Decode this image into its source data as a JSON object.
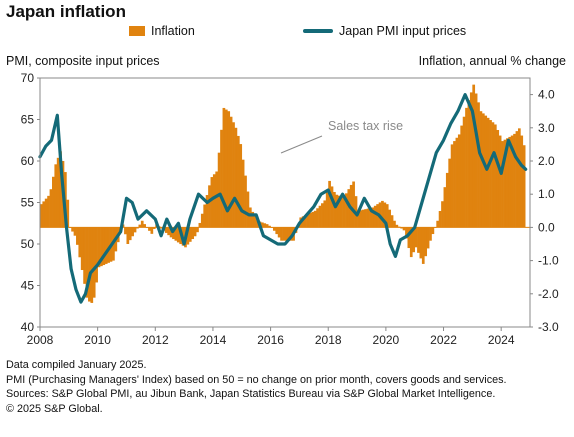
{
  "chart_data": {
    "type": "bar+line",
    "title": "Japan inflation",
    "left_axis_label": "PMI, composite input prices",
    "right_axis_label": "Inflation, annual % change",
    "left_ylim": [
      40,
      70
    ],
    "left_ticks": [
      40,
      45,
      50,
      55,
      60,
      65,
      70
    ],
    "right_ylim": [
      -3,
      4.5
    ],
    "right_ticks": [
      "-3.0",
      "-2.0",
      "-1.0",
      "0.0",
      "1.0",
      "2.0",
      "3.0",
      "4.0"
    ],
    "xlim": [
      2008,
      2025
    ],
    "x_ticks": [
      "2008",
      "2010",
      "2012",
      "2014",
      "2016",
      "2018",
      "2020",
      "2022",
      "2024"
    ],
    "annotation": "Sales tax rise",
    "grid": false,
    "series": [
      {
        "name": "Inflation",
        "kind": "bar",
        "axis": "right",
        "color": "#e0830f",
        "points": [
          [
            2008.0,
            0.7
          ],
          [
            2008.3,
            1.0
          ],
          [
            2008.5,
            1.9
          ],
          [
            2008.67,
            2.3
          ],
          [
            2008.83,
            1.7
          ],
          [
            2009.0,
            0.0
          ],
          [
            2009.2,
            -0.3
          ],
          [
            2009.4,
            -1.2
          ],
          [
            2009.6,
            -2.2
          ],
          [
            2009.8,
            -2.3
          ],
          [
            2010.0,
            -1.2
          ],
          [
            2010.5,
            -1.0
          ],
          [
            2010.83,
            0.1
          ],
          [
            2011.0,
            -0.5
          ],
          [
            2011.5,
            0.2
          ],
          [
            2011.83,
            -0.2
          ],
          [
            2012.0,
            0.1
          ],
          [
            2012.5,
            -0.3
          ],
          [
            2012.83,
            -0.5
          ],
          [
            2013.0,
            -0.6
          ],
          [
            2013.4,
            -0.2
          ],
          [
            2013.7,
            0.8
          ],
          [
            2013.9,
            1.5
          ],
          [
            2014.1,
            1.7
          ],
          [
            2014.33,
            3.6
          ],
          [
            2014.5,
            3.5
          ],
          [
            2014.75,
            3.0
          ],
          [
            2014.92,
            2.5
          ],
          [
            2015.25,
            0.6
          ],
          [
            2015.5,
            0.2
          ],
          [
            2015.83,
            0.1
          ],
          [
            2016.0,
            0.0
          ],
          [
            2016.33,
            -0.4
          ],
          [
            2016.75,
            -0.4
          ],
          [
            2017.0,
            0.3
          ],
          [
            2017.5,
            0.5
          ],
          [
            2017.83,
            0.8
          ],
          [
            2018.0,
            1.4
          ],
          [
            2018.2,
            1.0
          ],
          [
            2018.5,
            0.9
          ],
          [
            2018.83,
            1.4
          ],
          [
            2019.0,
            0.5
          ],
          [
            2019.5,
            0.6
          ],
          [
            2019.83,
            0.8
          ],
          [
            2020.0,
            0.7
          ],
          [
            2020.3,
            0.1
          ],
          [
            2020.6,
            -0.1
          ],
          [
            2020.83,
            -0.9
          ],
          [
            2021.0,
            -0.6
          ],
          [
            2021.25,
            -1.1
          ],
          [
            2021.5,
            -0.4
          ],
          [
            2021.75,
            0.2
          ],
          [
            2021.92,
            0.8
          ],
          [
            2022.25,
            2.5
          ],
          [
            2022.5,
            2.8
          ],
          [
            2022.75,
            3.6
          ],
          [
            2023.0,
            4.3
          ],
          [
            2023.25,
            3.5
          ],
          [
            2023.5,
            3.3
          ],
          [
            2023.75,
            3.1
          ],
          [
            2024.0,
            2.6
          ],
          [
            2024.2,
            2.7
          ],
          [
            2024.4,
            2.8
          ],
          [
            2024.6,
            3.0
          ],
          [
            2024.8,
            2.3
          ]
        ]
      },
      {
        "name": "Japan PMI input prices",
        "kind": "line",
        "axis": "left",
        "color": "#146a78",
        "points": [
          [
            2008.0,
            60.5
          ],
          [
            2008.2,
            61.8
          ],
          [
            2008.4,
            62.5
          ],
          [
            2008.6,
            65.5
          ],
          [
            2008.75,
            58.5
          ],
          [
            2008.92,
            52.0
          ],
          [
            2009.08,
            47.0
          ],
          [
            2009.25,
            44.5
          ],
          [
            2009.42,
            43.0
          ],
          [
            2009.58,
            44.0
          ],
          [
            2009.75,
            46.5
          ],
          [
            2010.0,
            47.5
          ],
          [
            2010.3,
            49.0
          ],
          [
            2010.5,
            50.0
          ],
          [
            2010.8,
            51.5
          ],
          [
            2011.0,
            55.5
          ],
          [
            2011.2,
            55.0
          ],
          [
            2011.4,
            53.0
          ],
          [
            2011.7,
            54.0
          ],
          [
            2012.0,
            53.0
          ],
          [
            2012.2,
            51.0
          ],
          [
            2012.4,
            53.0
          ],
          [
            2012.6,
            51.5
          ],
          [
            2012.8,
            52.5
          ],
          [
            2013.0,
            50.0
          ],
          [
            2013.2,
            53.0
          ],
          [
            2013.5,
            56.0
          ],
          [
            2013.8,
            55.0
          ],
          [
            2014.0,
            55.5
          ],
          [
            2014.25,
            56.0
          ],
          [
            2014.5,
            54.0
          ],
          [
            2014.75,
            55.5
          ],
          [
            2015.0,
            54.0
          ],
          [
            2015.25,
            53.5
          ],
          [
            2015.5,
            53.5
          ],
          [
            2015.75,
            51.0
          ],
          [
            2016.0,
            50.5
          ],
          [
            2016.25,
            50.0
          ],
          [
            2016.5,
            50.0
          ],
          [
            2016.75,
            51.0
          ],
          [
            2017.0,
            52.5
          ],
          [
            2017.25,
            53.5
          ],
          [
            2017.5,
            54.5
          ],
          [
            2017.75,
            56.0
          ],
          [
            2018.0,
            56.5
          ],
          [
            2018.25,
            54.5
          ],
          [
            2018.5,
            56.0
          ],
          [
            2018.75,
            54.5
          ],
          [
            2019.0,
            53.5
          ],
          [
            2019.25,
            55.5
          ],
          [
            2019.5,
            54.0
          ],
          [
            2019.75,
            53.5
          ],
          [
            2020.0,
            52.5
          ],
          [
            2020.15,
            50.0
          ],
          [
            2020.33,
            48.5
          ],
          [
            2020.5,
            50.5
          ],
          [
            2020.75,
            51.0
          ],
          [
            2021.0,
            52.0
          ],
          [
            2021.25,
            55.0
          ],
          [
            2021.5,
            58.0
          ],
          [
            2021.75,
            61.0
          ],
          [
            2022.0,
            62.5
          ],
          [
            2022.25,
            64.5
          ],
          [
            2022.5,
            66.0
          ],
          [
            2022.75,
            68.0
          ],
          [
            2023.0,
            66.0
          ],
          [
            2023.25,
            61.0
          ],
          [
            2023.5,
            59.0
          ],
          [
            2023.75,
            61.0
          ],
          [
            2024.0,
            58.5
          ],
          [
            2024.25,
            62.5
          ],
          [
            2024.5,
            60.5
          ],
          [
            2024.7,
            59.5
          ],
          [
            2024.85,
            59.0
          ]
        ]
      }
    ]
  },
  "footnotes": [
    "Data compiled January 2025.",
    "PMI (Purchasing Managers' Index) based on 50 = no change on prior month, covers goods and services.",
    "Sources: S&P Global PMI, au Jibun Bank, Japan Statistics Bureau via S&P Global Market Intelligence.",
    "© 2025 S&P Global."
  ]
}
